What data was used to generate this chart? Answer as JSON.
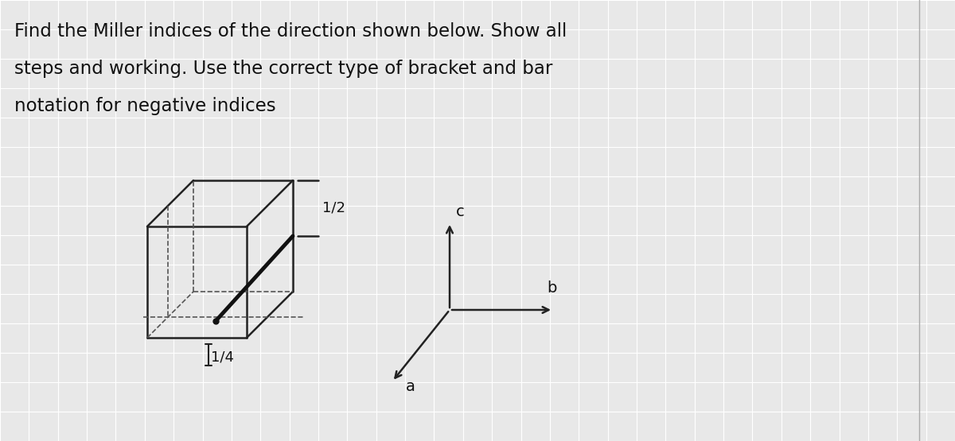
{
  "title_line1": "Find the Miller indices of the direction shown below. Show all",
  "title_line2": "steps and working. Use the correct type of bracket and bar",
  "title_line3": "notation for negative indices",
  "bg_color": "#e8e8e8",
  "text_color": "#111111",
  "title_fontsize": 16.5,
  "label_fontsize": 12,
  "grid_color": "#ffffff",
  "cube_color": "#222222",
  "grid_nx": 33,
  "grid_ny": 15
}
